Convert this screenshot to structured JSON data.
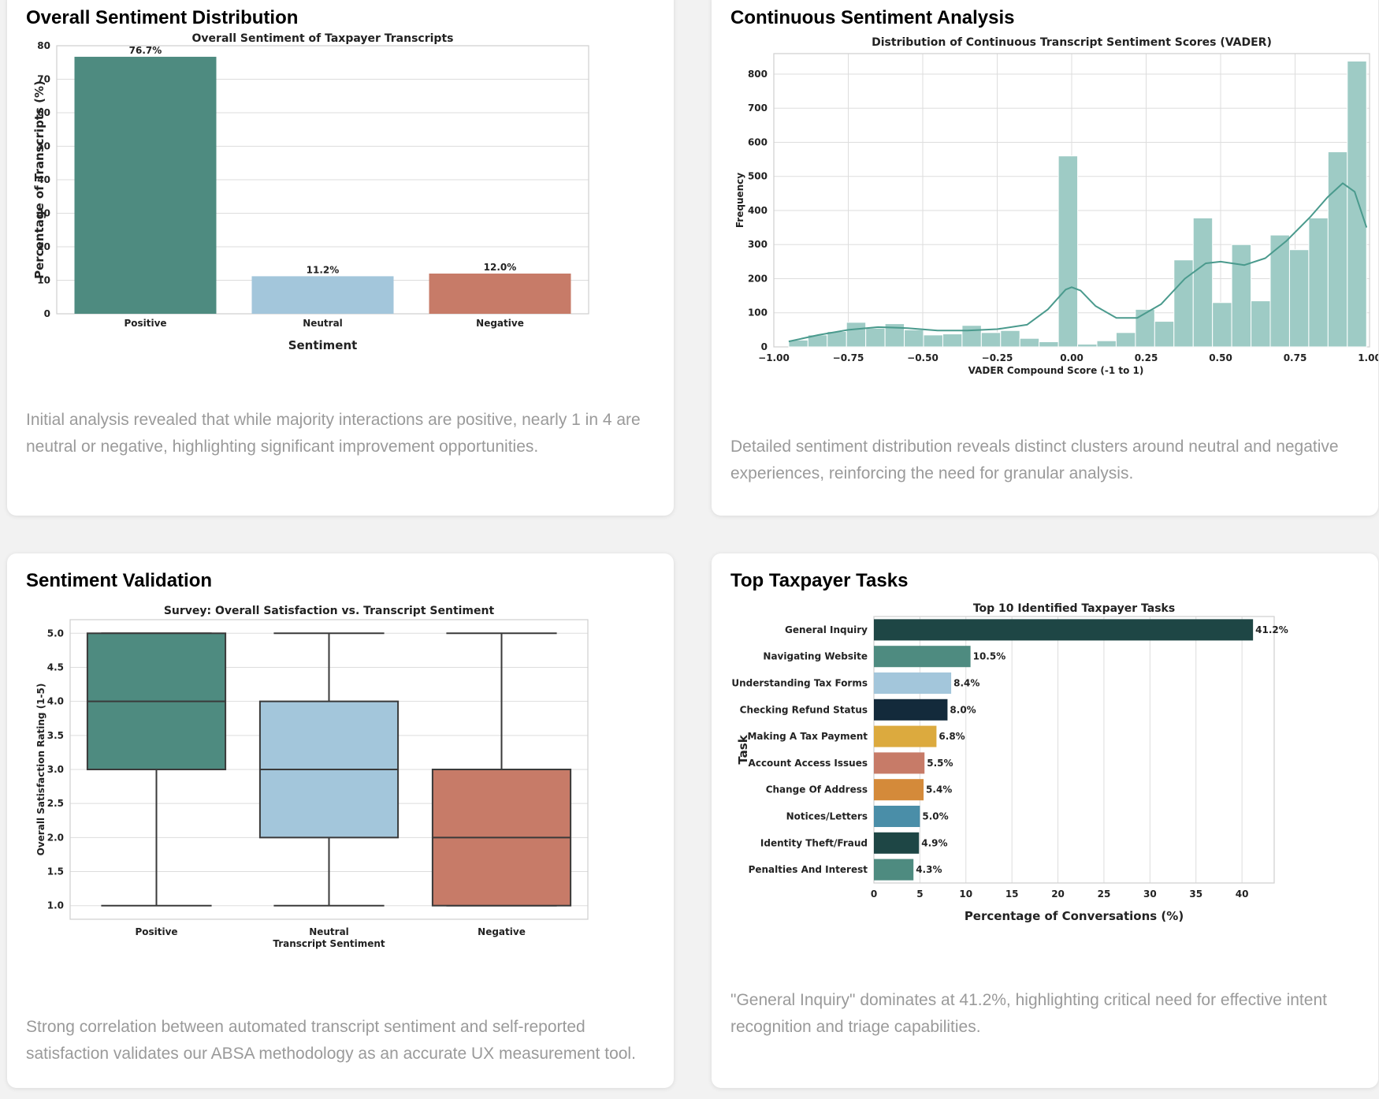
{
  "cards": {
    "sentiment_distribution": {
      "title": "Overall Sentiment Distribution",
      "caption": "Initial analysis revealed that while majority interactions are positive, nearly 1 in 4 are neutral or negative, highlighting significant improvement opportunities."
    },
    "continuous_sentiment": {
      "title": "Continuous Sentiment Analysis",
      "caption": "Detailed sentiment distribution reveals distinct clusters around neutral and negative experiences, reinforcing the need for granular analysis."
    },
    "sentiment_validation": {
      "title": "Sentiment Validation",
      "caption": "Strong correlation between automated transcript sentiment and self-reported satisfaction validates our ABSA methodology as an accurate UX measurement tool."
    },
    "top_tasks": {
      "title": "Top Taxpayer Tasks",
      "caption": "\"General Inquiry\" dominates at 41.2%, highlighting critical need for effective intent recognition and triage capabilities."
    }
  },
  "chart_data": [
    {
      "type": "bar",
      "title": "Overall Sentiment of Taxpayer Transcripts",
      "xlabel": "Sentiment",
      "ylabel": "Percentage of Transcripts (%)",
      "categories": [
        "Positive",
        "Neutral",
        "Negative"
      ],
      "values": [
        76.7,
        11.2,
        12.0
      ],
      "data_labels": [
        "76.7%",
        "11.2%",
        "12.0%"
      ],
      "colors": [
        "#4e8b80",
        "#a3c6db",
        "#c77b68"
      ],
      "ylim": [
        0,
        80
      ],
      "yticks": [
        "0",
        "10",
        "20",
        "30",
        "40",
        "50",
        "60",
        "70",
        "80"
      ],
      "grid": true
    },
    {
      "type": "histogram",
      "title": "Distribution of Continuous Transcript Sentiment Scores (VADER)",
      "xlabel": "VADER Compound Score (-1 to 1)",
      "ylabel": "Frequency",
      "xlim": [
        -1.0,
        1.0
      ],
      "ylim": [
        0,
        860
      ],
      "xticks": [
        -1.0,
        -0.75,
        -0.5,
        -0.25,
        0.0,
        0.25,
        0.5,
        0.75,
        1.0
      ],
      "xtick_labels": [
        "−1.00",
        "−0.75",
        "−0.50",
        "−0.25",
        "0.00",
        "0.25",
        "0.50",
        "0.75",
        "1.00"
      ],
      "yticks": [
        0,
        100,
        200,
        300,
        400,
        500,
        600,
        700,
        800
      ],
      "bin_range": [
        -0.95,
        0.99
      ],
      "counts": [
        20,
        35,
        45,
        72,
        55,
        68,
        50,
        35,
        38,
        63,
        42,
        48,
        25,
        15,
        560,
        8,
        18,
        42,
        110,
        75,
        255,
        378,
        130,
        300,
        135,
        328,
        285,
        378,
        572,
        838
      ],
      "kde": [
        [
          -0.95,
          16
        ],
        [
          -0.85,
          35
        ],
        [
          -0.75,
          50
        ],
        [
          -0.65,
          58
        ],
        [
          -0.55,
          55
        ],
        [
          -0.45,
          48
        ],
        [
          -0.35,
          48
        ],
        [
          -0.25,
          52
        ],
        [
          -0.15,
          65
        ],
        [
          -0.08,
          110
        ],
        [
          -0.02,
          168
        ],
        [
          0.0,
          175
        ],
        [
          0.03,
          165
        ],
        [
          0.08,
          120
        ],
        [
          0.15,
          85
        ],
        [
          0.22,
          85
        ],
        [
          0.3,
          125
        ],
        [
          0.38,
          200
        ],
        [
          0.45,
          245
        ],
        [
          0.5,
          250
        ],
        [
          0.58,
          240
        ],
        [
          0.65,
          260
        ],
        [
          0.72,
          310
        ],
        [
          0.8,
          380
        ],
        [
          0.86,
          440
        ],
        [
          0.91,
          480
        ],
        [
          0.95,
          455
        ],
        [
          0.99,
          350
        ]
      ],
      "color": "#9ecbc5",
      "line_color": "#4a9a8d",
      "grid": true
    },
    {
      "type": "box",
      "title": "Survey: Overall Satisfaction vs. Transcript Sentiment",
      "xlabel": "Transcript Sentiment",
      "ylabel": "Overall Satisfaction Rating (1-5)",
      "categories": [
        "Positive",
        "Neutral",
        "Negative"
      ],
      "boxes": [
        {
          "min": 1,
          "q1": 3,
          "median": 4,
          "q3": 5,
          "max": 5
        },
        {
          "min": 1,
          "q1": 2,
          "median": 3,
          "q3": 4,
          "max": 5
        },
        {
          "min": 1,
          "q1": 1,
          "median": 2,
          "q3": 3,
          "max": 5
        }
      ],
      "colors": [
        "#4e8b80",
        "#a3c6db",
        "#c77b68"
      ],
      "ylim": [
        0.8,
        5.2
      ],
      "yticks": [
        "1.0",
        "1.5",
        "2.0",
        "2.5",
        "3.0",
        "3.5",
        "4.0",
        "4.5",
        "5.0"
      ],
      "grid": true
    },
    {
      "type": "barh",
      "title": "Top 10 Identified Taxpayer Tasks",
      "xlabel": "Percentage of Conversations (%)",
      "ylabel": "Task",
      "categories": [
        "General Inquiry",
        "Navigating Website",
        "Understanding Tax Forms",
        "Checking Refund Status",
        "Making A Tax Payment",
        "Account Access Issues",
        "Change Of Address",
        "Notices/Letters",
        "Identity Theft/Fraud",
        "Penalties And Interest"
      ],
      "values": [
        41.2,
        10.5,
        8.4,
        8.0,
        6.8,
        5.5,
        5.4,
        5.0,
        4.9,
        4.3
      ],
      "data_labels": [
        "41.2%",
        "10.5%",
        "8.4%",
        "8.0%",
        "6.8%",
        "5.5%",
        "5.4%",
        "5.0%",
        "4.9%",
        "4.3%"
      ],
      "colors": [
        "#1e4645",
        "#4e8b80",
        "#a3c6db",
        "#132a3b",
        "#dcaa3e",
        "#c77b68",
        "#d48a3a",
        "#4a8ea8",
        "#1e4645",
        "#4e8b80"
      ],
      "xlim": [
        0,
        43.5
      ],
      "xticks": [
        "0",
        "5",
        "10",
        "15",
        "20",
        "25",
        "30",
        "35",
        "40"
      ],
      "grid": true
    }
  ]
}
